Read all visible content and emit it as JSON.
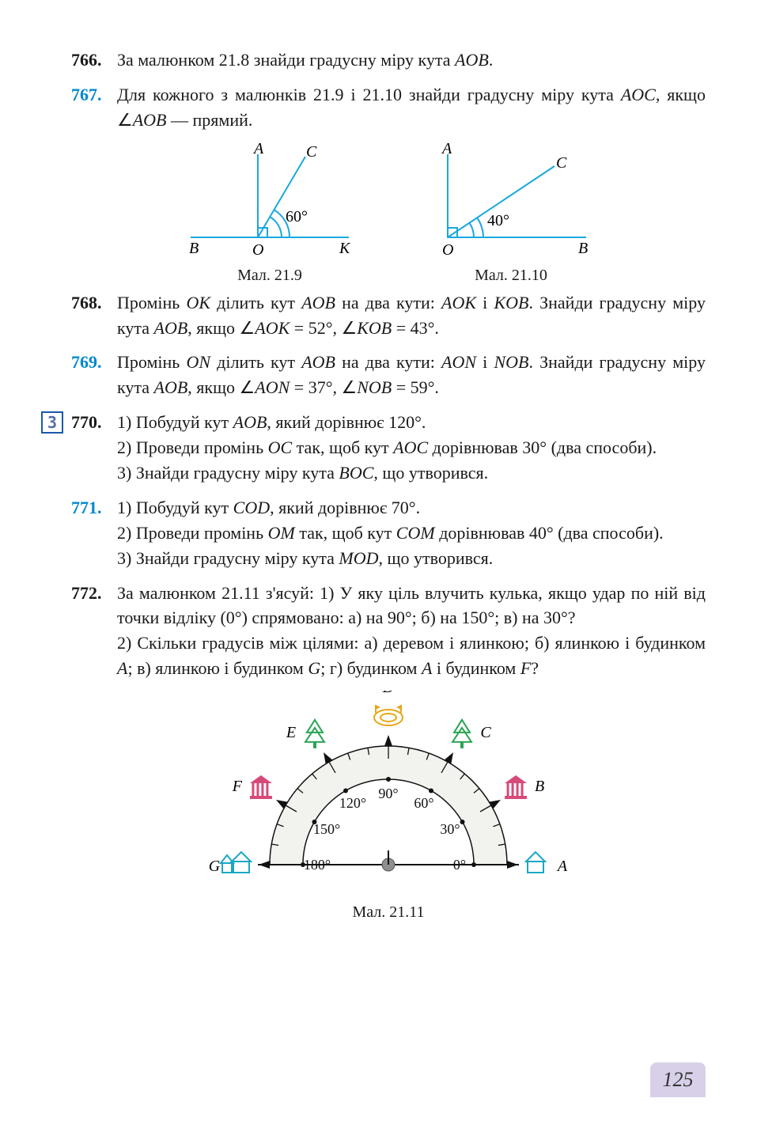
{
  "page_number": "125",
  "problems": {
    "p766": {
      "num": "766.",
      "text": "За малюнком 21.8 знайди градусну міру кута <i>AOB</i>."
    },
    "p767": {
      "num": "767.",
      "text": "Для кожного з малюнків 21.9 і 21.10 знайди градусну міру кута <i>AOC</i>, якщо ∠<i>AOB</i> — прямий."
    },
    "p768": {
      "num": "768.",
      "text": "Промінь <i>OK</i> ділить кут <i>AOB</i> на два кути: <i>AOK</i> і <i>KOB</i>. Знайди градусну міру кута <i>AOB</i>, якщо ∠<i>AOK</i> = 52°, ∠<i>KOB</i> = 43°."
    },
    "p769": {
      "num": "769.",
      "text": "Промінь <i>ON</i> ділить кут <i>AOB</i> на два кути: <i>AON</i> і <i>NOB</i>. Знайди градусну міру кута <i>AOB</i>, якщо ∠<i>AON</i> = 37°, ∠<i>NOB</i> = 59°."
    },
    "p770": {
      "num": "770.",
      "l1": "1) Побудуй кут <i>AOB</i>, який дорівнює 120°.",
      "l2": "2) Проведи промінь <i>OC</i> так, щоб кут <i>AOC</i> дорівнював 30° (два способи).",
      "l3": "3) Знайди градусну міру кута <i>BOC</i>, що утворився."
    },
    "p771": {
      "num": "771.",
      "l1": "1) Побудуй кут <i>COD</i>, який дорівнює 70°.",
      "l2": "2) Проведи промінь <i>OM</i> так, щоб кут <i>COM</i> дорівнював 40° (два способи).",
      "l3": "3) Знайди градусну міру кута <i>MOD</i>, що утворився."
    },
    "p772": {
      "num": "772.",
      "l1": "За малюнком 21.11 з'ясуй: 1) У яку ціль влучить кулька, якщо удар по ній від точки відліку (0°) спрямовано: а) на 90°; б) на 150°; в) на 30°?",
      "l2": "2) Скільки градусів між цілями: а) деревом і ялинкою; б) ялинкою і будинком <i>A</i>; в) ялинкою і будинком <i>G</i>; г) будинком <i>A</i> і будинком <i>F</i>?"
    }
  },
  "level_badge": "3",
  "fig219": {
    "caption": "Мал. 21.9",
    "angle_label": "60°",
    "labels": {
      "A": "A",
      "B": "B",
      "C": "C",
      "O": "O",
      "K": "K"
    },
    "line_color": "#19a8e0",
    "arc_color": "#19a8e0",
    "angle_deg": 60
  },
  "fig2110": {
    "caption": "Мал. 21.10",
    "angle_label": "40°",
    "labels": {
      "A": "A",
      "B": "B",
      "C": "C",
      "O": "O"
    },
    "line_color": "#19a8e0",
    "arc_color": "#19a8e0",
    "angle_deg": 40
  },
  "fig2111": {
    "caption": "Мал. 21.11",
    "angles": [
      0,
      30,
      60,
      90,
      120,
      150,
      180
    ],
    "angle_labels": [
      "0°",
      "30°",
      "60°",
      "90°",
      "120°",
      "150°",
      "180°"
    ],
    "point_labels": [
      "A",
      "B",
      "C",
      "D",
      "E",
      "F",
      "G"
    ],
    "outer_radius": 150,
    "inner_radius": 108,
    "tick_step": 10,
    "fill_color": "#f2f2ee",
    "stroke_color": "#111111",
    "ball_color": "#8f8f8f",
    "icon_colors": {
      "A": "#1aa7c4",
      "B": "#d64a7a",
      "C": "#2aa555",
      "D": "#e6a817",
      "E": "#2aa555",
      "F": "#d64a7a",
      "G": "#1aa7c4"
    }
  },
  "typography": {
    "body_font": "Georgia, Times New Roman, serif",
    "body_size_pt": 16,
    "num_bold": true,
    "blue_hex": "#0088cc",
    "text_hex": "#1a1a1a",
    "background_hex": "#ffffff"
  }
}
